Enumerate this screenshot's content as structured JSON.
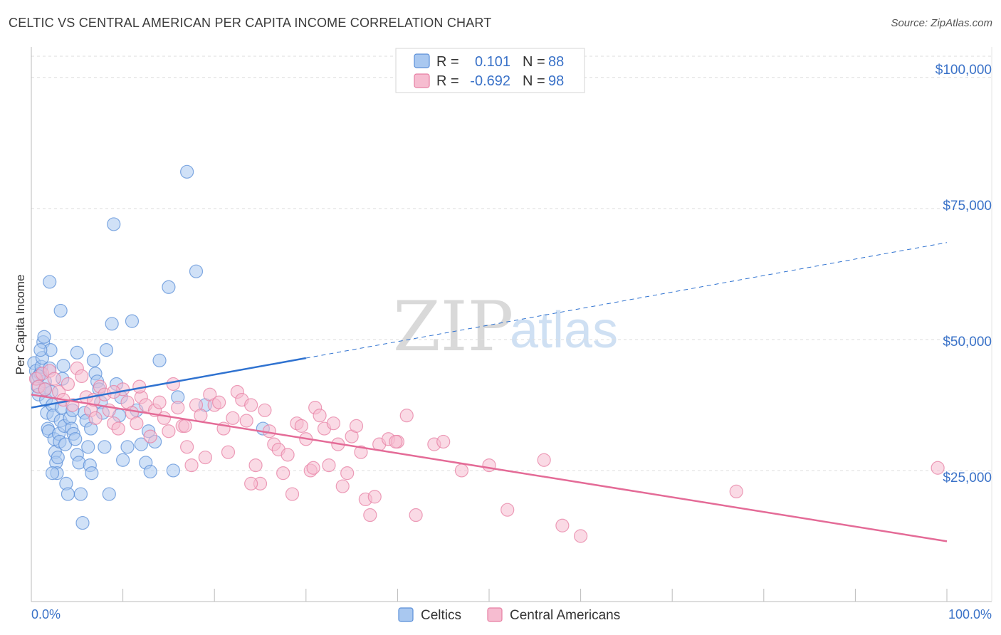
{
  "title": "CELTIC VS CENTRAL AMERICAN PER CAPITA INCOME CORRELATION CHART",
  "source": "Source: ZipAtlas.com",
  "watermark": {
    "zip": "ZIP",
    "atlas": "atlas"
  },
  "colors": {
    "celtics_fill": "#a9c8f0",
    "celtics_stroke": "#5b8fd8",
    "celtics_line": "#2f72d0",
    "central_fill": "#f6bcd0",
    "central_stroke": "#e77fa3",
    "central_line": "#e46b97",
    "tick_text": "#3a72c8",
    "grid": "#dddddd"
  },
  "legend": {
    "row1": {
      "r_label": "R =",
      "r_value": "0.101",
      "n_label": "N =",
      "n_value": "88"
    },
    "row2": {
      "r_label": "R =",
      "r_value": "-0.692",
      "n_label": "N =",
      "n_value": "98"
    }
  },
  "bottom_legend": {
    "series1": "Celtics",
    "series2": "Central Americans"
  },
  "chart_data": {
    "type": "scatter",
    "title": "CELTIC VS CENTRAL AMERICAN PER CAPITA INCOME CORRELATION CHART",
    "xlabel": "",
    "ylabel": "Per Capita Income",
    "xlim": [
      0,
      100
    ],
    "ylim": [
      0,
      105000
    ],
    "x_tick_labels": [
      "0.0%",
      "100.0%"
    ],
    "y_ticks": [
      25000,
      50000,
      75000,
      100000
    ],
    "y_tick_labels": [
      "$25,000",
      "$50,000",
      "$75,000",
      "$100,000"
    ],
    "series": [
      {
        "name": "Celtics",
        "r": 0.101,
        "n": 88,
        "trend": {
          "x0": 0,
          "y0": 37000,
          "x1": 100,
          "y1": 68500,
          "solid_until_x": 30
        },
        "points": [
          [
            0.3,
            45500
          ],
          [
            0.5,
            44000
          ],
          [
            0.6,
            42500
          ],
          [
            0.7,
            41000
          ],
          [
            0.8,
            39500
          ],
          [
            1.0,
            43500
          ],
          [
            1.1,
            44800
          ],
          [
            1.2,
            46500
          ],
          [
            1.3,
            49500
          ],
          [
            1.4,
            50500
          ],
          [
            1.5,
            42000
          ],
          [
            1.6,
            38500
          ],
          [
            1.7,
            36000
          ],
          [
            1.8,
            33000
          ],
          [
            1.9,
            32500
          ],
          [
            2.0,
            44500
          ],
          [
            2.1,
            48000
          ],
          [
            2.2,
            40000
          ],
          [
            2.3,
            37500
          ],
          [
            2.4,
            35500
          ],
          [
            2.5,
            31000
          ],
          [
            2.6,
            28500
          ],
          [
            2.7,
            26500
          ],
          [
            2.8,
            24500
          ],
          [
            2.9,
            27500
          ],
          [
            3.0,
            32000
          ],
          [
            3.1,
            30500
          ],
          [
            3.2,
            34500
          ],
          [
            3.3,
            37000
          ],
          [
            3.4,
            42500
          ],
          [
            3.5,
            45000
          ],
          [
            3.6,
            33500
          ],
          [
            3.7,
            30000
          ],
          [
            3.8,
            22500
          ],
          [
            4.0,
            20500
          ],
          [
            4.2,
            35000
          ],
          [
            4.4,
            33000
          ],
          [
            4.6,
            32000
          ],
          [
            4.8,
            31000
          ],
          [
            5.0,
            28000
          ],
          [
            5.2,
            26500
          ],
          [
            5.4,
            20500
          ],
          [
            5.6,
            15000
          ],
          [
            5.8,
            36000
          ],
          [
            6.0,
            34500
          ],
          [
            6.2,
            29500
          ],
          [
            6.4,
            26000
          ],
          [
            6.6,
            24500
          ],
          [
            6.8,
            46000
          ],
          [
            7.0,
            43500
          ],
          [
            7.2,
            42000
          ],
          [
            7.4,
            40500
          ],
          [
            7.6,
            38000
          ],
          [
            7.8,
            36000
          ],
          [
            8.0,
            29500
          ],
          [
            8.2,
            48000
          ],
          [
            8.5,
            20500
          ],
          [
            8.8,
            53000
          ],
          [
            9.0,
            72000
          ],
          [
            9.3,
            41500
          ],
          [
            9.6,
            35500
          ],
          [
            10.0,
            27000
          ],
          [
            10.5,
            29500
          ],
          [
            11.0,
            53500
          ],
          [
            11.5,
            36500
          ],
          [
            12.0,
            30000
          ],
          [
            12.5,
            26500
          ],
          [
            13.0,
            24800
          ],
          [
            13.5,
            30500
          ],
          [
            14.0,
            46000
          ],
          [
            15.0,
            60000
          ],
          [
            15.5,
            25000
          ],
          [
            16.0,
            39000
          ],
          [
            17.0,
            82000
          ],
          [
            18.0,
            63000
          ],
          [
            19.0,
            37500
          ],
          [
            3.2,
            55500
          ],
          [
            2.0,
            61000
          ],
          [
            1.0,
            48000
          ],
          [
            0.8,
            43000
          ],
          [
            4.5,
            36500
          ],
          [
            6.5,
            33000
          ],
          [
            9.8,
            39000
          ],
          [
            12.8,
            32500
          ],
          [
            25.3,
            33000
          ],
          [
            1.5,
            40500
          ],
          [
            2.3,
            24500
          ],
          [
            5.0,
            47500
          ]
        ]
      },
      {
        "name": "Central Americans",
        "r": -0.692,
        "n": 98,
        "trend": {
          "x0": 0,
          "y0": 39500,
          "x1": 100,
          "y1": 11500
        },
        "points": [
          [
            0.5,
            42500
          ],
          [
            0.8,
            41000
          ],
          [
            1.2,
            43500
          ],
          [
            1.5,
            40500
          ],
          [
            2.0,
            44000
          ],
          [
            2.5,
            42500
          ],
          [
            3.0,
            40000
          ],
          [
            3.5,
            38500
          ],
          [
            4.0,
            41500
          ],
          [
            4.5,
            37500
          ],
          [
            5.0,
            44500
          ],
          [
            5.5,
            43000
          ],
          [
            6.0,
            39000
          ],
          [
            6.5,
            36500
          ],
          [
            7.0,
            35000
          ],
          [
            7.5,
            41000
          ],
          [
            8.0,
            39500
          ],
          [
            8.5,
            36500
          ],
          [
            9.0,
            34000
          ],
          [
            9.5,
            33000
          ],
          [
            10.0,
            40500
          ],
          [
            10.5,
            38000
          ],
          [
            11.0,
            36000
          ],
          [
            11.5,
            34000
          ],
          [
            12.0,
            39000
          ],
          [
            12.5,
            37500
          ],
          [
            13.0,
            31500
          ],
          [
            13.5,
            36500
          ],
          [
            14.0,
            38000
          ],
          [
            14.5,
            35000
          ],
          [
            15.0,
            32500
          ],
          [
            15.5,
            41500
          ],
          [
            16.0,
            37000
          ],
          [
            16.5,
            33500
          ],
          [
            17.0,
            29500
          ],
          [
            17.5,
            26000
          ],
          [
            18.0,
            37500
          ],
          [
            18.5,
            35500
          ],
          [
            19.0,
            27500
          ],
          [
            19.5,
            39500
          ],
          [
            20.0,
            37500
          ],
          [
            20.5,
            38000
          ],
          [
            21.0,
            33000
          ],
          [
            21.5,
            28500
          ],
          [
            22.0,
            35000
          ],
          [
            22.5,
            40000
          ],
          [
            23.0,
            38500
          ],
          [
            23.5,
            34500
          ],
          [
            24.0,
            37500
          ],
          [
            24.5,
            26000
          ],
          [
            25.0,
            22500
          ],
          [
            25.5,
            36500
          ],
          [
            26.0,
            32500
          ],
          [
            26.5,
            30000
          ],
          [
            27.0,
            29000
          ],
          [
            27.5,
            24500
          ],
          [
            28.0,
            28000
          ],
          [
            28.5,
            20500
          ],
          [
            29.0,
            34000
          ],
          [
            29.5,
            33500
          ],
          [
            30.0,
            31000
          ],
          [
            30.5,
            25000
          ],
          [
            31.0,
            37000
          ],
          [
            31.5,
            35500
          ],
          [
            32.0,
            33000
          ],
          [
            32.5,
            26000
          ],
          [
            33.0,
            34000
          ],
          [
            33.5,
            30000
          ],
          [
            34.0,
            22000
          ],
          [
            34.5,
            24500
          ],
          [
            35.0,
            31500
          ],
          [
            35.5,
            33500
          ],
          [
            36.0,
            28500
          ],
          [
            36.5,
            19500
          ],
          [
            37.0,
            16500
          ],
          [
            37.5,
            20000
          ],
          [
            38.0,
            30000
          ],
          [
            39.0,
            31000
          ],
          [
            40.0,
            30500
          ],
          [
            41.0,
            35500
          ],
          [
            42.0,
            16500
          ],
          [
            44.0,
            30000
          ],
          [
            45.0,
            30500
          ],
          [
            47.0,
            25000
          ],
          [
            50.0,
            26000
          ],
          [
            52.0,
            17500
          ],
          [
            56.0,
            27000
          ],
          [
            58.0,
            14500
          ],
          [
            60.0,
            12500
          ],
          [
            77.0,
            21000
          ],
          [
            99.0,
            25500
          ],
          [
            24.0,
            22500
          ],
          [
            11.8,
            41000
          ],
          [
            6.8,
            38500
          ],
          [
            16.8,
            33500
          ],
          [
            30.8,
            25500
          ],
          [
            39.8,
            30500
          ],
          [
            9.0,
            40000
          ]
        ]
      }
    ]
  }
}
